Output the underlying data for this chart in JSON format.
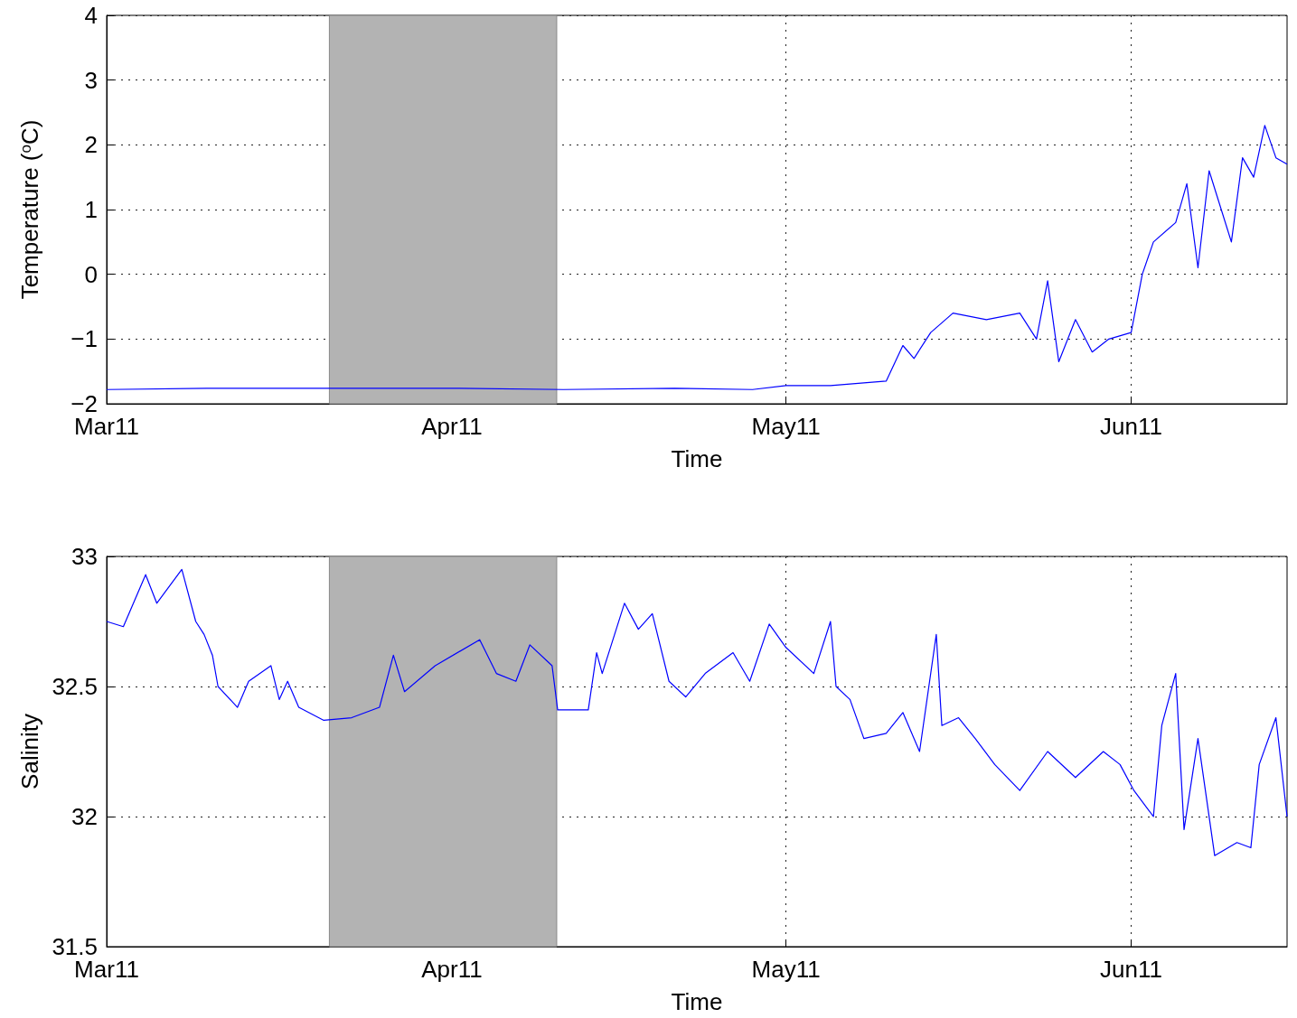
{
  "chart_data": [
    {
      "type": "line",
      "xlabel": "Time",
      "ylabel": "Temperature ($^{o}$C)",
      "xlim": [
        "--03-11",
        "--06-25"
      ],
      "xticks": [
        {
          "value": "--03-11",
          "label": "Mar11"
        },
        {
          "value": "--04-11",
          "label": "Apr11"
        },
        {
          "value": "--05-11",
          "label": "May11"
        },
        {
          "value": "--06-11",
          "label": "Jun11"
        }
      ],
      "ylim": [
        -2,
        4
      ],
      "yticks": [
        -2,
        -1,
        0,
        1,
        2,
        3,
        4
      ],
      "grid": true,
      "marker": "none",
      "line_style": "solid",
      "bands": [
        {
          "axis": "x",
          "from": "--03-31",
          "to": "--04-20T10:00",
          "color": "#b3b3b3"
        }
      ],
      "series": [
        {
          "color": "#0000ff",
          "x": [
            "--03-11",
            "--03-20",
            "--04-11",
            "--04-21",
            "--05-01",
            "--05-08",
            "--05-11",
            "--05-15",
            "--05-20",
            "--05-21T12:00",
            "--05-22T12:00",
            "--05-24",
            "--05-26",
            "--05-29",
            "--06-01",
            "--06-02T12:00",
            "--06-03T12:00",
            "--06-04T12:00",
            "--06-06",
            "--06-07T12:00",
            "--06-09",
            "--06-11",
            "--06-12",
            "--06-13",
            "--06-15",
            "--06-16",
            "--06-17",
            "--06-18",
            "--06-20",
            "--06-21",
            "--06-22",
            "--06-23",
            "--06-24",
            "--06-25"
          ],
          "values": [
            -1.78,
            -1.76,
            -1.76,
            -1.78,
            -1.76,
            -1.78,
            -1.72,
            -1.72,
            -1.65,
            -1.1,
            -1.3,
            -0.9,
            -0.6,
            -0.7,
            -0.6,
            -1.0,
            -0.1,
            -1.35,
            -0.7,
            -1.2,
            -1.0,
            -0.9,
            0.0,
            0.5,
            0.8,
            1.4,
            0.1,
            1.6,
            0.5,
            1.8,
            1.5,
            2.3,
            1.8,
            1.7
          ]
        }
      ]
    },
    {
      "type": "line",
      "xlabel": "Time",
      "ylabel": "Salinity",
      "xlim": [
        "--03-11",
        "--06-25"
      ],
      "xticks": [
        {
          "value": "--03-11",
          "label": "Mar11"
        },
        {
          "value": "--04-11",
          "label": "Apr11"
        },
        {
          "value": "--05-11",
          "label": "May11"
        },
        {
          "value": "--06-11",
          "label": "Jun11"
        }
      ],
      "ylim": [
        31.5,
        33
      ],
      "yticks": [
        31.5,
        32,
        32.5,
        33
      ],
      "grid": true,
      "marker": "none",
      "line_style": "solid",
      "bands": [
        {
          "axis": "x",
          "from": "--03-31",
          "to": "--04-20T10:00",
          "color": "#b3b3b3"
        }
      ],
      "series": [
        {
          "color": "#0000ff",
          "x": [
            "--03-11",
            "--03-12T12:00",
            "--03-14T12:00",
            "--03-15T12:00",
            "--03-17T18:00",
            "--03-19",
            "--03-19T18:00",
            "--03-20T12:00",
            "--03-21",
            "--03-22T18:00",
            "--03-23T18:00",
            "--03-25T18:00",
            "--03-26T12:00",
            "--03-27T06:00",
            "--03-28T06:00",
            "--03-30T12:00",
            "--04-02",
            "--04-04T12:00",
            "--04-05T18:00",
            "--04-06T18:00",
            "--04-09T12:00",
            "--04-13T12:00",
            "--04-15",
            "--04-16T18:00",
            "--04-18",
            "--04-20",
            "--04-20T12:00",
            "--04-23T06:00",
            "--04-24",
            "--04-24T12:00",
            "--04-26T12:00",
            "--04-27T18:00",
            "--04-29",
            "--04-30T12:00",
            "--05-02",
            "--05-03T18:00",
            "--05-06T06:00",
            "--05-07T18:00",
            "--05-09T12:00",
            "--05-11",
            "--05-13T12:00",
            "--05-15",
            "--05-15T12:00",
            "--05-16T18:00",
            "--05-18",
            "--05-20",
            "--05-21T12:00",
            "--05-23",
            "--05-24T12:00",
            "--05-25",
            "--05-26T12:00",
            "--05-28",
            "--05-29T18:00",
            "--06-01",
            "--06-03T12:00",
            "--06-06",
            "--06-08T12:00",
            "--06-10",
            "--06-11T06:00",
            "--06-13",
            "--06-13T18:00",
            "--06-15",
            "--06-15T18:00",
            "--06-17",
            "--06-18T12:00",
            "--06-20T12:00",
            "--06-21T18:00",
            "--06-22T12:00",
            "--06-24",
            "--06-25"
          ],
          "values": [
            32.75,
            32.73,
            32.93,
            32.82,
            32.95,
            32.75,
            32.7,
            32.62,
            32.5,
            32.42,
            32.52,
            32.58,
            32.45,
            32.52,
            32.42,
            32.37,
            32.38,
            32.42,
            32.62,
            32.48,
            32.58,
            32.68,
            32.55,
            32.52,
            32.66,
            32.58,
            32.41,
            32.41,
            32.63,
            32.55,
            32.82,
            32.72,
            32.78,
            32.52,
            32.46,
            32.55,
            32.63,
            32.52,
            32.74,
            32.65,
            32.55,
            32.75,
            32.5,
            32.45,
            32.3,
            32.32,
            32.4,
            32.25,
            32.7,
            32.35,
            32.38,
            32.3,
            32.2,
            32.1,
            32.25,
            32.15,
            32.25,
            32.2,
            32.1,
            32.0,
            32.35,
            32.55,
            31.95,
            32.3,
            31.85,
            31.9,
            31.88,
            32.2,
            32.38,
            32.0
          ]
        }
      ]
    }
  ]
}
